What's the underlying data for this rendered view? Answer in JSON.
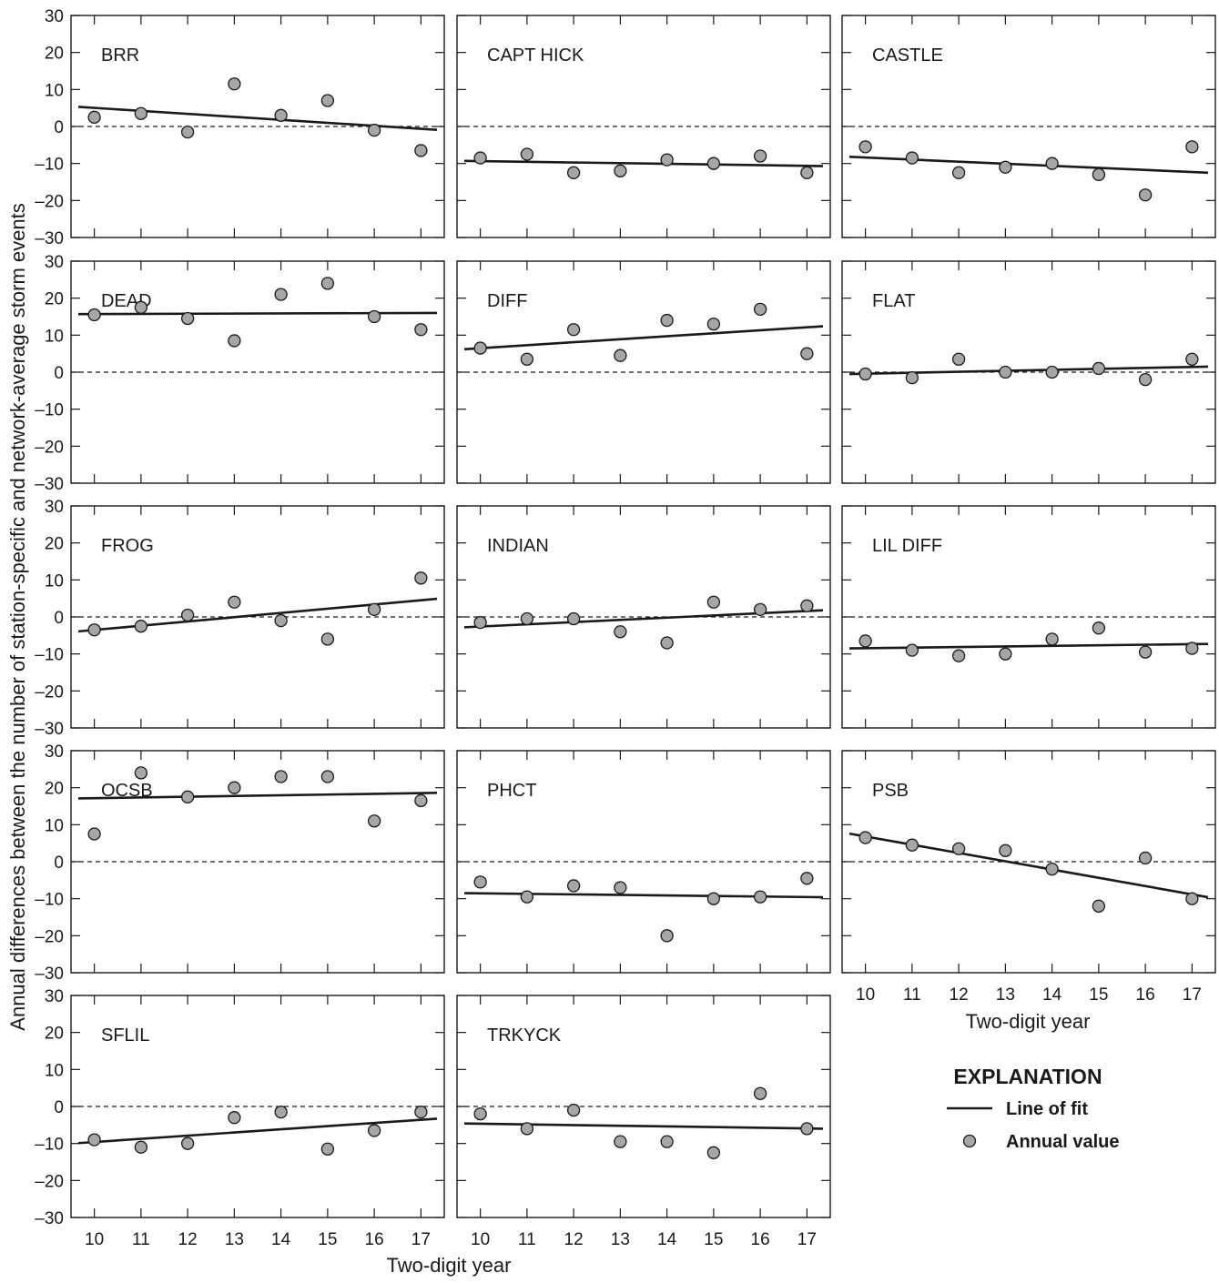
{
  "chart_data": {
    "type": "scatter",
    "ylabel": "Annual differences between the number of station-specific and network-average storm events",
    "xlabel": "Two-digit year",
    "x": [
      10,
      11,
      12,
      13,
      14,
      15,
      16,
      17
    ],
    "x_tick_labels": [
      "10",
      "11",
      "12",
      "13",
      "14",
      "15",
      "16",
      "17"
    ],
    "ylim": [
      -30,
      30
    ],
    "y_ticks": [
      30,
      20,
      10,
      0,
      -10,
      -20,
      -30
    ],
    "y_tick_labels": [
      "30",
      "20",
      "10",
      "0",
      "–10",
      "–20",
      "–30"
    ],
    "reference_line": 0,
    "panels": [
      {
        "name": "BRR",
        "values": [
          2.5,
          3.5,
          -1.5,
          11.5,
          3,
          7,
          -1,
          -6.5
        ],
        "fit": [
          5.3,
          -0.9
        ]
      },
      {
        "name": "CAPT HICK",
        "values": [
          -8.5,
          -7.5,
          -12.5,
          -12,
          -9,
          -10,
          -8,
          -12.5
        ],
        "fit": [
          -9.3,
          -10.7
        ]
      },
      {
        "name": "CASTLE",
        "values": [
          -5.5,
          -8.5,
          -12.5,
          -11,
          -10,
          -13,
          -18.5,
          -5.5
        ],
        "fit": [
          -8.2,
          -12.5
        ]
      },
      {
        "name": "DEAD",
        "values": [
          15.5,
          17.5,
          14.5,
          8.5,
          21,
          24,
          15,
          11.5
        ],
        "fit": [
          15.7,
          16
        ]
      },
      {
        "name": "DIFF",
        "values": [
          6.5,
          3.5,
          11.5,
          4.5,
          14,
          13,
          17,
          5
        ],
        "fit": [
          6.2,
          12.4
        ]
      },
      {
        "name": "FLAT",
        "values": [
          -0.5,
          -1.5,
          3.5,
          0,
          0,
          1,
          -2,
          3.5
        ],
        "fit": [
          -0.5,
          1.5
        ]
      },
      {
        "name": "FROG",
        "values": [
          -3.5,
          -2.5,
          0.5,
          4,
          -1,
          -6,
          2,
          10.5
        ],
        "fit": [
          -3.9,
          4.9
        ]
      },
      {
        "name": "INDIAN",
        "values": [
          -1.5,
          -0.5,
          -0.5,
          -4,
          -7,
          4,
          2,
          3
        ],
        "fit": [
          -2.8,
          1.8
        ]
      },
      {
        "name": "LIL DIFF",
        "values": [
          -6.5,
          -9,
          -10.5,
          -10,
          -6,
          -3,
          -9.5,
          -8.5
        ],
        "fit": [
          -8.5,
          -7.3
        ]
      },
      {
        "name": "OCSB",
        "values": [
          7.5,
          24,
          17.5,
          20,
          23,
          23,
          11,
          16.5
        ],
        "fit": [
          17.1,
          18.6
        ]
      },
      {
        "name": "PHCT",
        "values": [
          -5.5,
          -9.5,
          -6.5,
          -7,
          -20,
          -10,
          -9.5,
          -4.5
        ],
        "fit": [
          -8.5,
          -9.6
        ]
      },
      {
        "name": "PSB",
        "values": [
          6.5,
          4.5,
          3.5,
          3,
          -2,
          -12,
          1,
          -10
        ],
        "fit": [
          7.6,
          -9.6
        ]
      },
      {
        "name": "SFLIL",
        "values": [
          -9,
          -11,
          -10,
          -3,
          -1.5,
          -11.5,
          -6.5,
          -1.5
        ],
        "fit": [
          -9.9,
          -3.3
        ]
      },
      {
        "name": "TRKYCK",
        "values": [
          -2,
          -6,
          -1,
          -9.5,
          -9.5,
          -12.5,
          3.5,
          -6
        ],
        "fit": [
          -4.6,
          -6
        ]
      }
    ],
    "legend": {
      "title": "EXPLANATION",
      "placement": "bottom-right",
      "entries": [
        {
          "type": "line",
          "label": "Line of fit"
        },
        {
          "type": "marker",
          "label": "Annual value"
        }
      ]
    },
    "colors": {
      "marker_fill": "#a6a6a6",
      "marker_stroke": "#1a1a1a",
      "line": "#1a1a1a",
      "frame": "#1a1a1a"
    }
  }
}
